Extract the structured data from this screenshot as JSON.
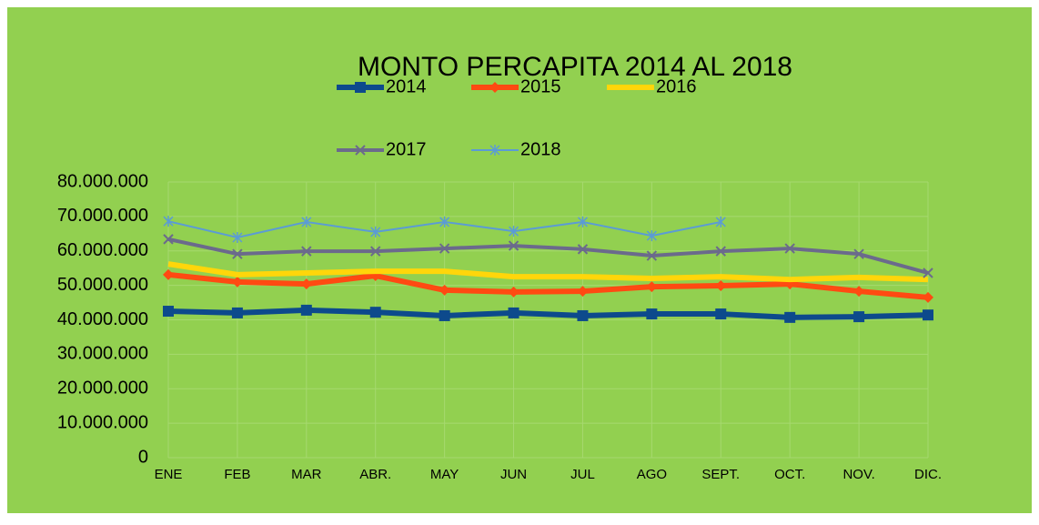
{
  "chart_data": {
    "type": "line",
    "title": "MONTO PERCAPITA 2014 AL 2018",
    "categories": [
      "ENE",
      "FEB",
      "MAR",
      "ABR.",
      "MAY",
      "JUN",
      "JUL",
      "AGO",
      "SEPT.",
      "OCT.",
      "NOV.",
      "DIC."
    ],
    "series": [
      {
        "name": "2014",
        "color": "#0d4a8c",
        "values": [
          42500000,
          42000000,
          42800000,
          42200000,
          41200000,
          42000000,
          41200000,
          41700000,
          41700000,
          40700000,
          40900000,
          41400000
        ]
      },
      {
        "name": "2015",
        "color": "#ff4a12",
        "values": [
          53100000,
          51000000,
          50400000,
          52800000,
          48600000,
          48100000,
          48300000,
          49600000,
          49900000,
          50400000,
          48300000,
          46500000
        ]
      },
      {
        "name": "2016",
        "color": "#ffd60a",
        "values": [
          56200000,
          53100000,
          53600000,
          54100000,
          54100000,
          52500000,
          52500000,
          52000000,
          52500000,
          51700000,
          52300000,
          51700000
        ]
      },
      {
        "name": "2017",
        "color": "#6b6a8c",
        "values": [
          63400000,
          59100000,
          59900000,
          59900000,
          60700000,
          61500000,
          60500000,
          58600000,
          59900000,
          60700000,
          59100000,
          53600000
        ]
      },
      {
        "name": "2018",
        "color": "#5b9bd5",
        "values": [
          68600000,
          63900000,
          68400000,
          65500000,
          68400000,
          65700000,
          68400000,
          64400000,
          68400000,
          null,
          null,
          null
        ]
      }
    ],
    "ylim": [
      0,
      80000000
    ],
    "yticks": [
      0,
      {
        "value": 10000000,
        "label": "10.000.000"
      },
      {
        "value": 20000000,
        "label": "20.000.000"
      },
      {
        "value": 30000000,
        "label": "30.000.000"
      },
      {
        "value": 40000000,
        "label": "40.000.000"
      },
      {
        "value": 50000000,
        "label": "50.000.000"
      },
      {
        "value": 60000000,
        "label": "60.000.000"
      },
      {
        "value": 70000000,
        "label": "70.000.000"
      },
      {
        "value": 80000000,
        "label": "80.000.000"
      }
    ],
    "grid": true
  }
}
